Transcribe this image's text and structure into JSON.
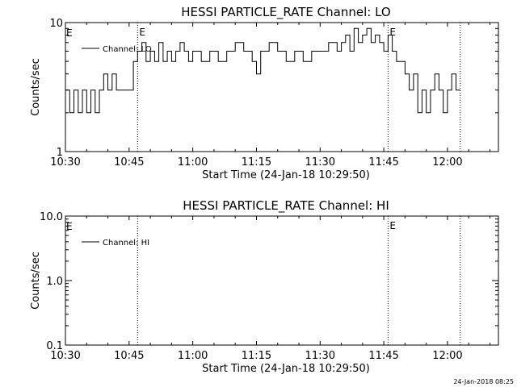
{
  "chart_data": [
    {
      "type": "line",
      "title": "HESSI PARTICLE_RATE Channel: LO",
      "xlabel": "Start Time (24-Jan-18 10:29:50)",
      "ylabel": "Counts/sec",
      "yscale": "log",
      "xlim": [
        "10:30",
        "12:12"
      ],
      "ylim": [
        1,
        10
      ],
      "x_ticks": [
        "10:30",
        "10:45",
        "11:00",
        "11:15",
        "11:30",
        "11:45",
        "12:00"
      ],
      "y_ticks": [
        "1",
        "10"
      ],
      "legend": "top-left",
      "grid": false,
      "markers": [
        {
          "time": "10:47",
          "label": "E"
        },
        {
          "time": "11:46",
          "label": "E"
        },
        {
          "time": "12:03",
          "label": ""
        }
      ],
      "marker_label_before_start": "E",
      "series": [
        {
          "name": "Channel: LO",
          "color": "#000000",
          "x": [
            "10:30",
            "10:31",
            "10:32",
            "10:33",
            "10:34",
            "10:35",
            "10:36",
            "10:37",
            "10:38",
            "10:39",
            "10:40",
            "10:41",
            "10:42",
            "10:43",
            "10:44",
            "10:45",
            "10:46",
            "10:47",
            "10:48",
            "10:49",
            "10:50",
            "10:51",
            "10:52",
            "10:53",
            "10:54",
            "10:55",
            "10:56",
            "10:57",
            "10:58",
            "10:59",
            "11:00",
            "11:02",
            "11:04",
            "11:06",
            "11:08",
            "11:10",
            "11:12",
            "11:14",
            "11:15",
            "11:16",
            "11:18",
            "11:20",
            "11:22",
            "11:24",
            "11:26",
            "11:28",
            "11:30",
            "11:32",
            "11:34",
            "11:35",
            "11:36",
            "11:37",
            "11:38",
            "11:39",
            "11:40",
            "11:41",
            "11:42",
            "11:43",
            "11:44",
            "11:45",
            "11:46",
            "11:47",
            "11:48",
            "11:49",
            "11:50",
            "11:51",
            "11:52",
            "11:53",
            "11:54",
            "11:55",
            "11:56",
            "11:57",
            "11:58",
            "11:59",
            "12:00",
            "12:01",
            "12:02",
            "12:03"
          ],
          "values": [
            3,
            2,
            3,
            2,
            3,
            2,
            3,
            2,
            3,
            4,
            3,
            4,
            3,
            3,
            3,
            3,
            5,
            6,
            7,
            5,
            6,
            5,
            7,
            5,
            6,
            5,
            6,
            7,
            6,
            5,
            6,
            5,
            6,
            5,
            6,
            7,
            6,
            5,
            4,
            6,
            7,
            6,
            5,
            6,
            5,
            6,
            6,
            7,
            6,
            7,
            8,
            6,
            9,
            7,
            8,
            9,
            7,
            8,
            7,
            6,
            8,
            6,
            5,
            5,
            4,
            3,
            4,
            2,
            3,
            2,
            3,
            4,
            3,
            2,
            3,
            4,
            3,
            3
          ]
        }
      ]
    },
    {
      "type": "line",
      "title": "HESSI PARTICLE_RATE Channel: HI",
      "xlabel": "Start Time (24-Jan-18 10:29:50)",
      "ylabel": "Counts/sec",
      "yscale": "log",
      "xlim": [
        "10:30",
        "12:12"
      ],
      "ylim": [
        0.1,
        10
      ],
      "x_ticks": [
        "10:30",
        "10:45",
        "11:00",
        "11:15",
        "11:30",
        "11:45",
        "12:00"
      ],
      "y_ticks": [
        "0.1",
        "1.0",
        "10.0"
      ],
      "legend": "top-left",
      "grid": false,
      "markers": [
        {
          "time": "10:47",
          "label": ""
        },
        {
          "time": "11:46",
          "label": "E"
        },
        {
          "time": "12:03",
          "label": ""
        }
      ],
      "marker_label_before_start": "E",
      "series": [
        {
          "name": "Channel: HI",
          "color": "#000000",
          "x": [],
          "values": []
        }
      ]
    }
  ],
  "footer_timestamp": "24-Jan-2018 08:25"
}
